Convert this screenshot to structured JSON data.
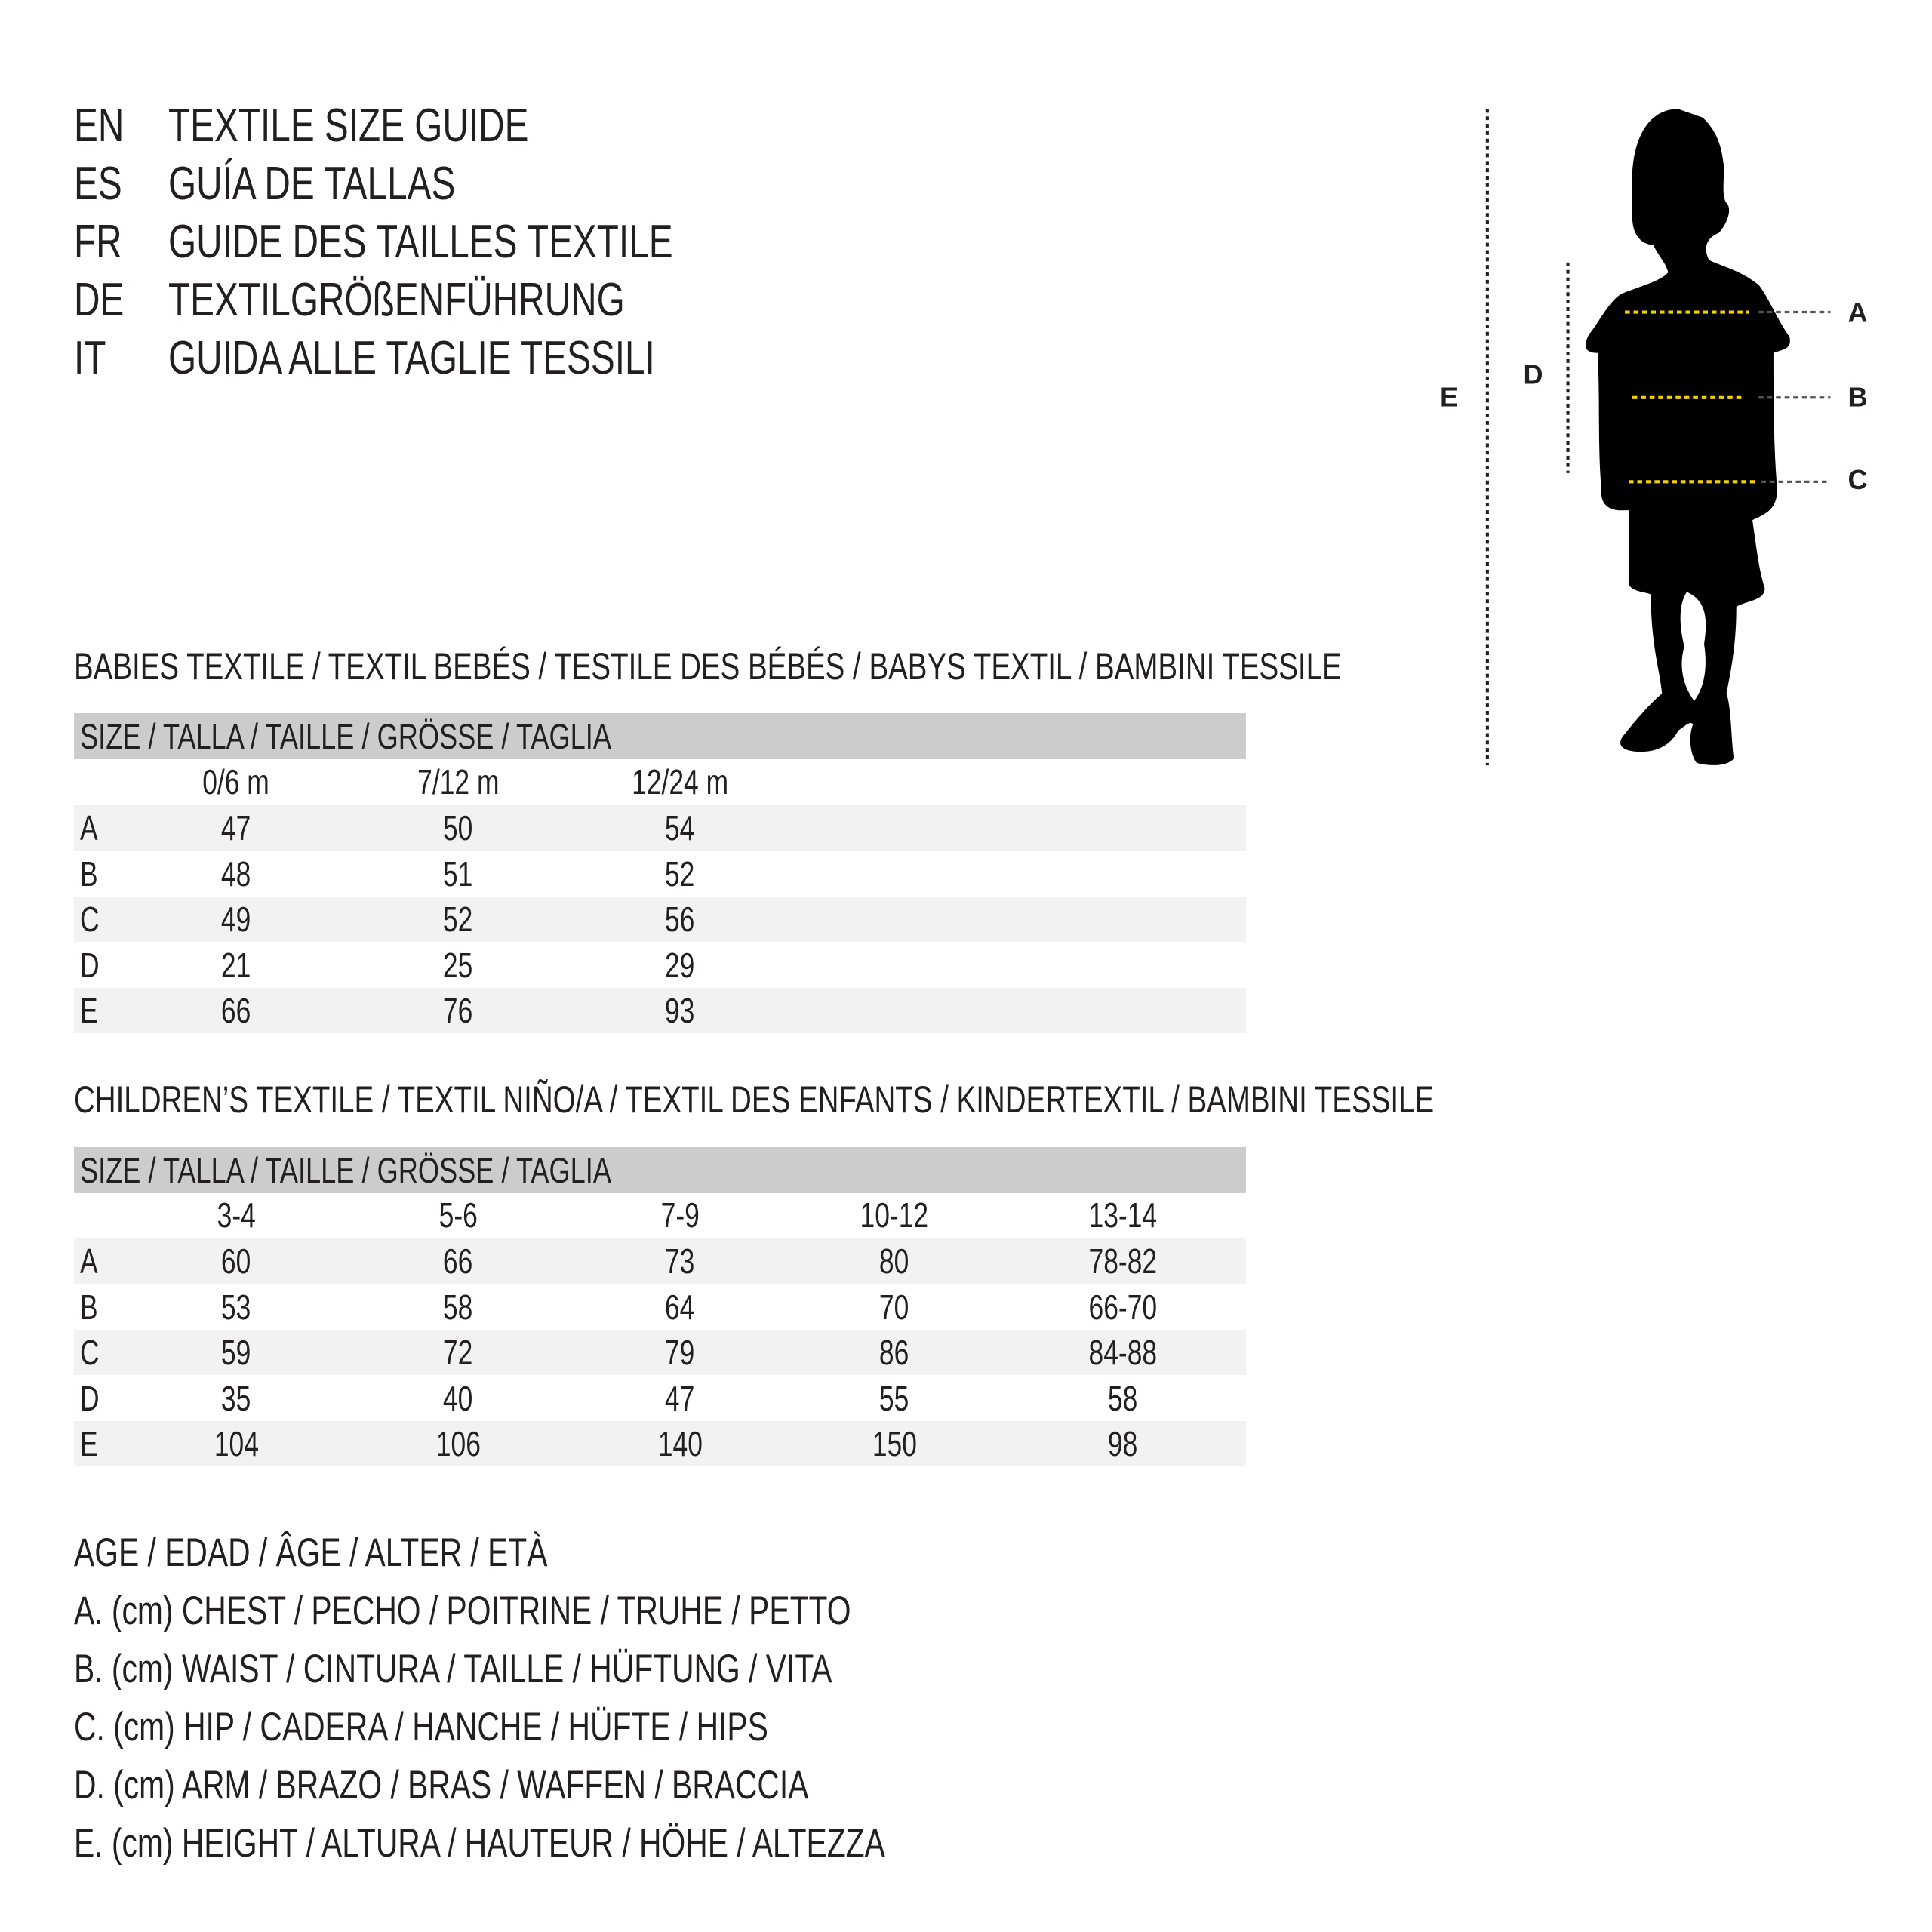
{
  "titles": [
    {
      "code": "EN",
      "text": "TEXTILE SIZE GUIDE"
    },
    {
      "code": "ES",
      "text": "GUÍA DE TALLAS"
    },
    {
      "code": "FR",
      "text": "GUIDE DES TAILLES TEXTILE"
    },
    {
      "code": "DE",
      "text": "TEXTILGRÖßENFÜHRUNG"
    },
    {
      "code": "IT",
      "text": "GUIDA ALLE TAGLIE TESSILI"
    }
  ],
  "babies": {
    "heading": "BABIES TEXTILE / TEXTIL BEBÉS / TESTILE DES BÉBÉS / BABYS TEXTIL / BAMBINI TESSILE",
    "size_header": "SIZE / TALLA / TAILLE / GRÖSSE / TAGLIA",
    "columns": [
      "0/6 m",
      "7/12 m",
      "12/24 m"
    ],
    "rows": [
      {
        "label": "A",
        "values": [
          "47",
          "50",
          "54"
        ]
      },
      {
        "label": "B",
        "values": [
          "48",
          "51",
          "52"
        ]
      },
      {
        "label": "C",
        "values": [
          "49",
          "52",
          "56"
        ]
      },
      {
        "label": "D",
        "values": [
          "21",
          "25",
          "29"
        ]
      },
      {
        "label": "E",
        "values": [
          "66",
          "76",
          "93"
        ]
      }
    ]
  },
  "children": {
    "heading": "CHILDREN’S TEXTILE / TEXTIL NIÑO/A / TEXTIL DES ENFANTS / KINDERTEXTIL / BAMBINI TESSILE",
    "size_header": "SIZE / TALLA / TAILLE / GRÖSSE / TAGLIA",
    "columns": [
      "3-4",
      "5-6",
      "7-9",
      "10-12",
      "13-14"
    ],
    "rows": [
      {
        "label": "A",
        "values": [
          "60",
          "66",
          "73",
          "80",
          "78-82"
        ]
      },
      {
        "label": "B",
        "values": [
          "53",
          "58",
          "64",
          "70",
          "66-70"
        ]
      },
      {
        "label": "C",
        "values": [
          "59",
          "72",
          "79",
          "86",
          "84-88"
        ]
      },
      {
        "label": "D",
        "values": [
          "35",
          "40",
          "47",
          "55",
          "58"
        ]
      },
      {
        "label": "E",
        "values": [
          "104",
          "106",
          "140",
          "150",
          "98"
        ]
      }
    ]
  },
  "legend": [
    "AGE / EDAD / ÂGE / ALTER / ETÀ",
    "A. (cm) CHEST / PECHO / POITRINE / TRUHE / PETTO",
    "B. (cm) WAIST / CINTURA / TAILLE / HÜFTUNG / VITA",
    "C. (cm) HIP / CADERA / HANCHE / HÜFTE / HIPS",
    "D. (cm) ARM / BRAZO / BRAS / WAFFEN / BRACCIA",
    "E. (cm) HEIGHT / ALTURA / HAUTEUR / HÖHE / ALTEZZA"
  ],
  "diagram": {
    "labels": {
      "A": "A",
      "B": "B",
      "C": "C",
      "D": "D",
      "E": "E"
    },
    "colors": {
      "silhouette": "#000000",
      "measure_line": "#f5d000",
      "guide_line": "#231f20",
      "header_bar": "#cccccd",
      "row_shade": "#f2f2f2"
    }
  }
}
